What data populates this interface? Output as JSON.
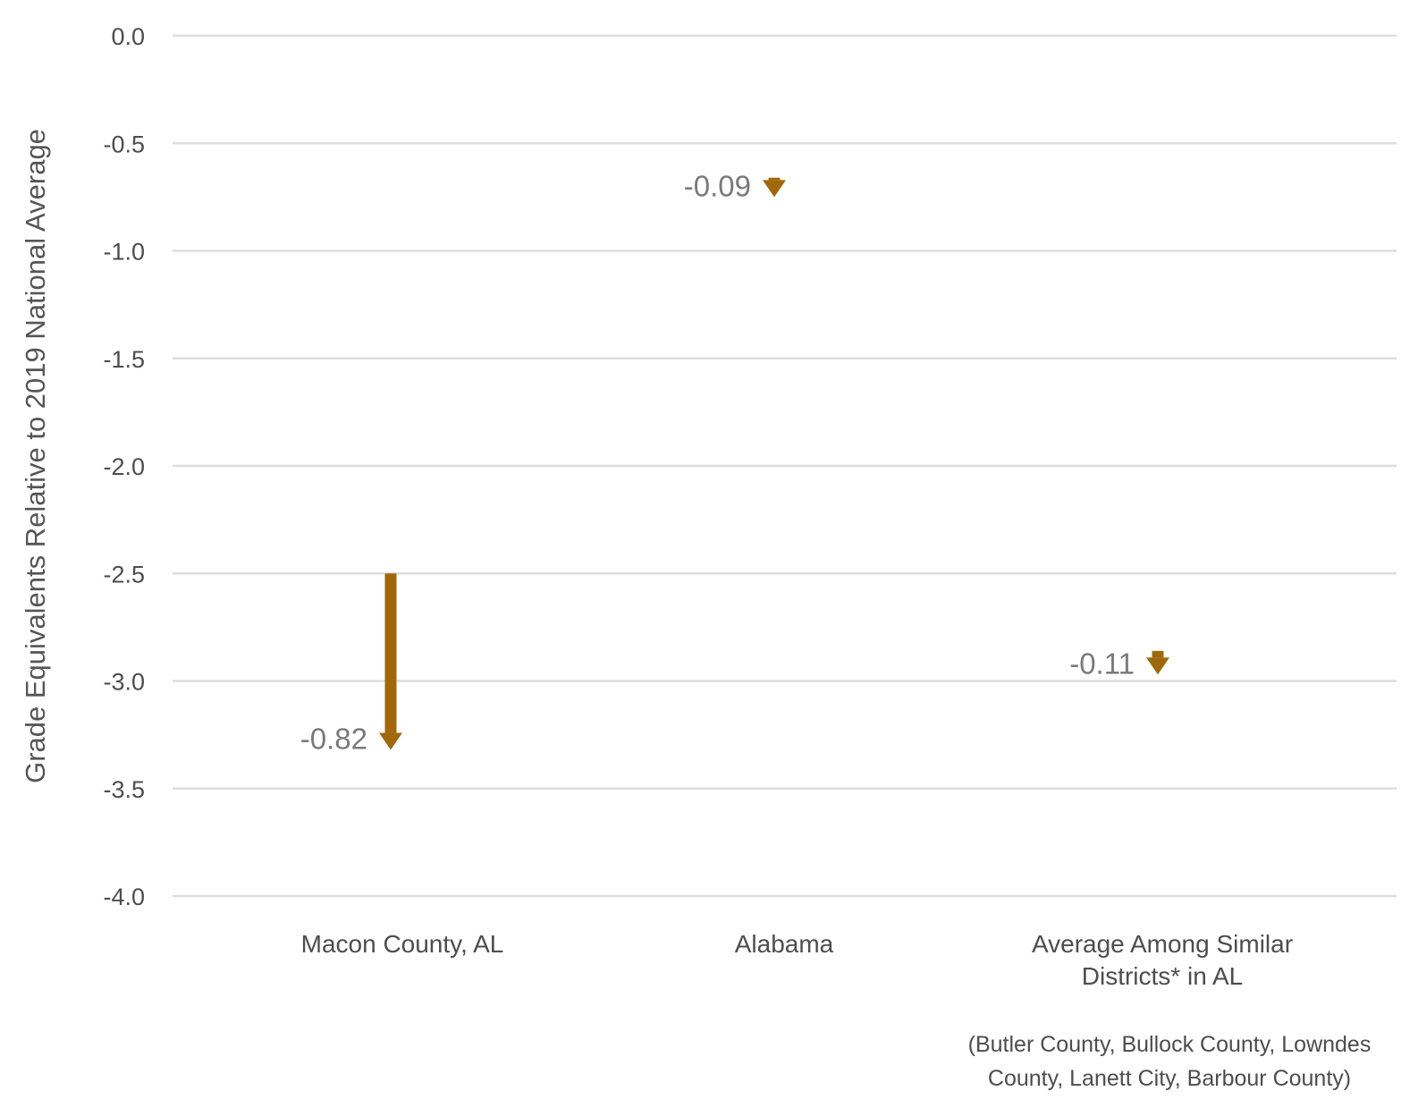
{
  "chart_data": {
    "type": "arrow",
    "title": "",
    "xlabel": "",
    "ylabel": "Grade Equivalents Relative to 2019 National Average",
    "ylim": [
      -4.0,
      0.0
    ],
    "yticks": [
      "0.0",
      "-0.5",
      "-1.0",
      "-1.5",
      "-2.0",
      "-2.5",
      "-3.0",
      "-3.5",
      "-4.0"
    ],
    "grid": true,
    "color": "#a0680a",
    "categories": [
      {
        "label_lines": [
          "Macon County, AL"
        ],
        "start": -2.5,
        "end": -3.32,
        "change_label": "-0.82"
      },
      {
        "label_lines": [
          "Alabama"
        ],
        "start": -0.66,
        "end": -0.75,
        "change_label": "-0.09"
      },
      {
        "label_lines": [
          "Average Among Similar",
          "Districts* in AL"
        ],
        "start": -2.86,
        "end": -2.97,
        "change_label": "-0.11"
      }
    ],
    "footnote_lines": [
      "(Butler County, Bullock County, Lowndes",
      "County, Lanett City, Barbour County)"
    ]
  }
}
